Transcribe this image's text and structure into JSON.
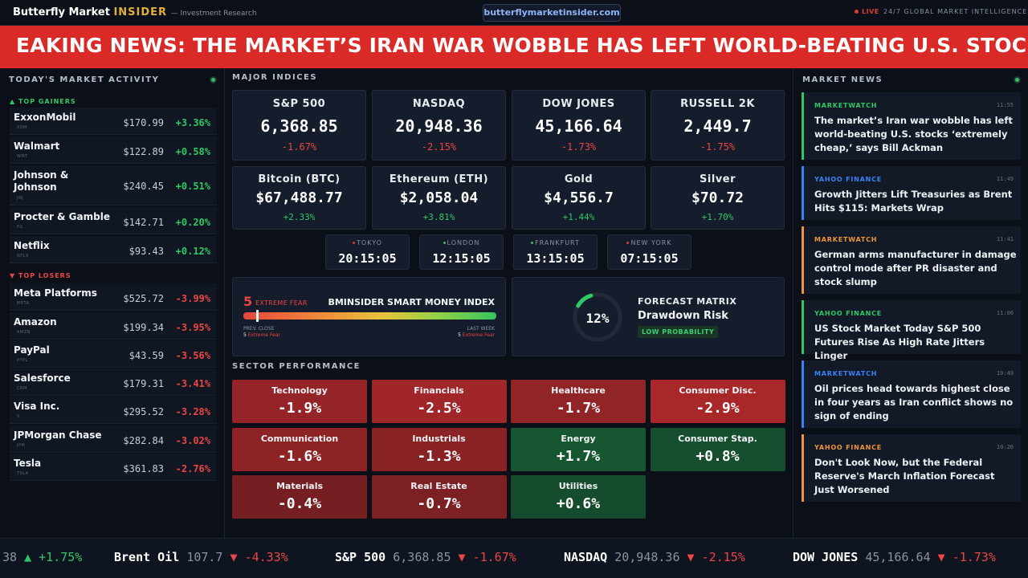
{
  "header": {
    "brand_main": "Butterfly Market",
    "brand_accent": "INSIDER",
    "brand_sub": "— Investment Research",
    "url": "butterflymarketinsider.com",
    "live_label": "LIVE",
    "tagline": "24/7 GLOBAL MARKET INTELLIGENCE"
  },
  "banner": {
    "text": "EAKING NEWS: THE MARKET’S IRAN WAR WOBBLE HAS LEFT WORLD-BEATING U.S. STOCKS ‘EXTRE"
  },
  "market_activity": {
    "title": "TODAY'S MARKET ACTIVITY",
    "gainers_label": "▲ TOP GAINERS",
    "losers_label": "▼ TOP LOSERS",
    "gainers": [
      {
        "name": "ExxonMobil",
        "ticker": "XOM",
        "price": "$170.99",
        "change": "+3.36%"
      },
      {
        "name": "Walmart",
        "ticker": "WMT",
        "price": "$122.89",
        "change": "+0.58%"
      },
      {
        "name": "Johnson & Johnson",
        "ticker": "JNJ",
        "price": "$240.45",
        "change": "+0.51%"
      },
      {
        "name": "Procter & Gamble",
        "ticker": "PG",
        "price": "$142.71",
        "change": "+0.20%"
      },
      {
        "name": "Netflix",
        "ticker": "NFLX",
        "price": "$93.43",
        "change": "+0.12%"
      }
    ],
    "losers": [
      {
        "name": "Meta Platforms",
        "ticker": "META",
        "price": "$525.72",
        "change": "-3.99%"
      },
      {
        "name": "Amazon",
        "ticker": "AMZN",
        "price": "$199.34",
        "change": "-3.95%"
      },
      {
        "name": "PayPal",
        "ticker": "PYPL",
        "price": "$43.59",
        "change": "-3.56%"
      },
      {
        "name": "Salesforce",
        "ticker": "CRM",
        "price": "$179.31",
        "change": "-3.41%"
      },
      {
        "name": "Visa Inc.",
        "ticker": "V",
        "price": "$295.52",
        "change": "-3.28%"
      },
      {
        "name": "JPMorgan Chase",
        "ticker": "JPM",
        "price": "$282.84",
        "change": "-3.02%"
      },
      {
        "name": "Tesla",
        "ticker": "TSLA",
        "price": "$361.83",
        "change": "-2.76%"
      }
    ]
  },
  "indices": {
    "title": "MAJOR INDICES",
    "cards": [
      {
        "name": "S&P 500",
        "value": "6,368.85",
        "change": "-1.67%"
      },
      {
        "name": "NASDAQ",
        "value": "20,948.36",
        "change": "-2.15%"
      },
      {
        "name": "DOW JONES",
        "value": "45,166.64",
        "change": "-1.73%"
      },
      {
        "name": "RUSSELL 2K",
        "value": "2,449.7",
        "change": "-1.75%"
      },
      {
        "name": "Bitcoin (BTC)",
        "value": "$67,488.77",
        "change": "+2.33%"
      },
      {
        "name": "Ethereum (ETH)",
        "value": "$2,058.04",
        "change": "+3.81%"
      },
      {
        "name": "Gold",
        "value": "$4,556.7",
        "change": "+1.44%"
      },
      {
        "name": "Silver",
        "value": "$70.72",
        "change": "+1.70%"
      }
    ]
  },
  "clocks": [
    {
      "city": "TOKYO",
      "time": "20:15:05",
      "dot_color": "#e03b3b"
    },
    {
      "city": "LONDON",
      "time": "12:15:05",
      "dot_color": "#3fb56a"
    },
    {
      "city": "FRANKFURT",
      "time": "13:15:05",
      "dot_color": "#3fb56a"
    },
    {
      "city": "NEW YORK",
      "time": "07:15:05",
      "dot_color": "#e03b3b"
    }
  ],
  "smart_money": {
    "value": "5",
    "label": "EXTREME FEAR",
    "title": "BMINSIDER SMART MONEY INDEX",
    "level_fraction": 0.05,
    "prev_label": "PREV. CLOSE",
    "prev_value": "5",
    "prev_status": "Extreme Fear",
    "week_label": "LAST WEEK",
    "week_value": "5",
    "week_status": "Extreme Fear"
  },
  "forecast": {
    "percent": "12%",
    "level_fraction": 0.12,
    "title": "FORECAST MATRIX",
    "subtitle": "Drawdown Risk",
    "badge": "LOW PROBABILITY"
  },
  "sectors": {
    "title": "SECTOR PERFORMANCE",
    "items": [
      {
        "name": "Technology",
        "value": "-1.9%"
      },
      {
        "name": "Financials",
        "value": "-2.5%"
      },
      {
        "name": "Healthcare",
        "value": "-1.7%"
      },
      {
        "name": "Consumer Disc.",
        "value": "-2.9%"
      },
      {
        "name": "Communication",
        "value": "-1.6%"
      },
      {
        "name": "Industrials",
        "value": "-1.3%"
      },
      {
        "name": "Energy",
        "value": "+1.7%"
      },
      {
        "name": "Consumer Stap.",
        "value": "+0.8%"
      },
      {
        "name": "Materials",
        "value": "-0.4%"
      },
      {
        "name": "Real Estate",
        "value": "-0.7%"
      },
      {
        "name": "Utilities",
        "value": "+0.6%"
      }
    ]
  },
  "news": {
    "title": "MARKET NEWS",
    "items": [
      {
        "source": "MARKETWATCH",
        "time": "11:55",
        "headline": "The market’s Iran war wobble has left world-beating U.S. stocks ‘extremely cheap,’ says Bill Ackman",
        "color": "#2ec866"
      },
      {
        "source": "YAHOO FINANCE",
        "time": "11:49",
        "headline": "Growth Jitters Lift Treasuries as Brent Hits $115: Markets Wrap",
        "color": "#3b82f6"
      },
      {
        "source": "MARKETWATCH",
        "time": "11:41",
        "headline": "German arms manufacturer in damage control mode after PR disaster and stock slump",
        "color": "#f0953a"
      },
      {
        "source": "YAHOO FINANCE",
        "time": "11:06",
        "headline": "US Stock Market Today S&P 500 Futures Rise As High Rate Jitters Linger",
        "color": "#2ec866"
      },
      {
        "source": "MARKETWATCH",
        "time": "10:49",
        "headline": "Oil prices head towards highest close in four years as Iran conflict shows no sign of ending",
        "color": "#3b82f6"
      },
      {
        "source": "YAHOO FINANCE",
        "time": "10:26",
        "headline": "Don't Look Now, but the Federal Reserve's March Inflation Forecast Just Worsened",
        "color": "#f0953a"
      }
    ]
  },
  "ticker": [
    {
      "name": "",
      "value": "38",
      "arrow": "▲",
      "change": "+1.75%",
      "dir": "up"
    },
    {
      "name": "Brent Oil",
      "value": "107.7",
      "arrow": "▼",
      "change": "-4.33%",
      "dir": "down"
    },
    {
      "name": "S&P 500",
      "value": "6,368.85",
      "arrow": "▼",
      "change": "-1.67%",
      "dir": "down"
    },
    {
      "name": "NASDAQ",
      "value": "20,948.36",
      "arrow": "▼",
      "change": "-2.15%",
      "dir": "down"
    },
    {
      "name": "DOW JONES",
      "value": "45,166.64",
      "arrow": "▼",
      "change": "-1.73%",
      "dir": "down"
    }
  ],
  "colors": {
    "up": "#2ec866",
    "down": "#ea4646",
    "banner": "#d92a27",
    "brand_accent": "#e2b03b"
  }
}
